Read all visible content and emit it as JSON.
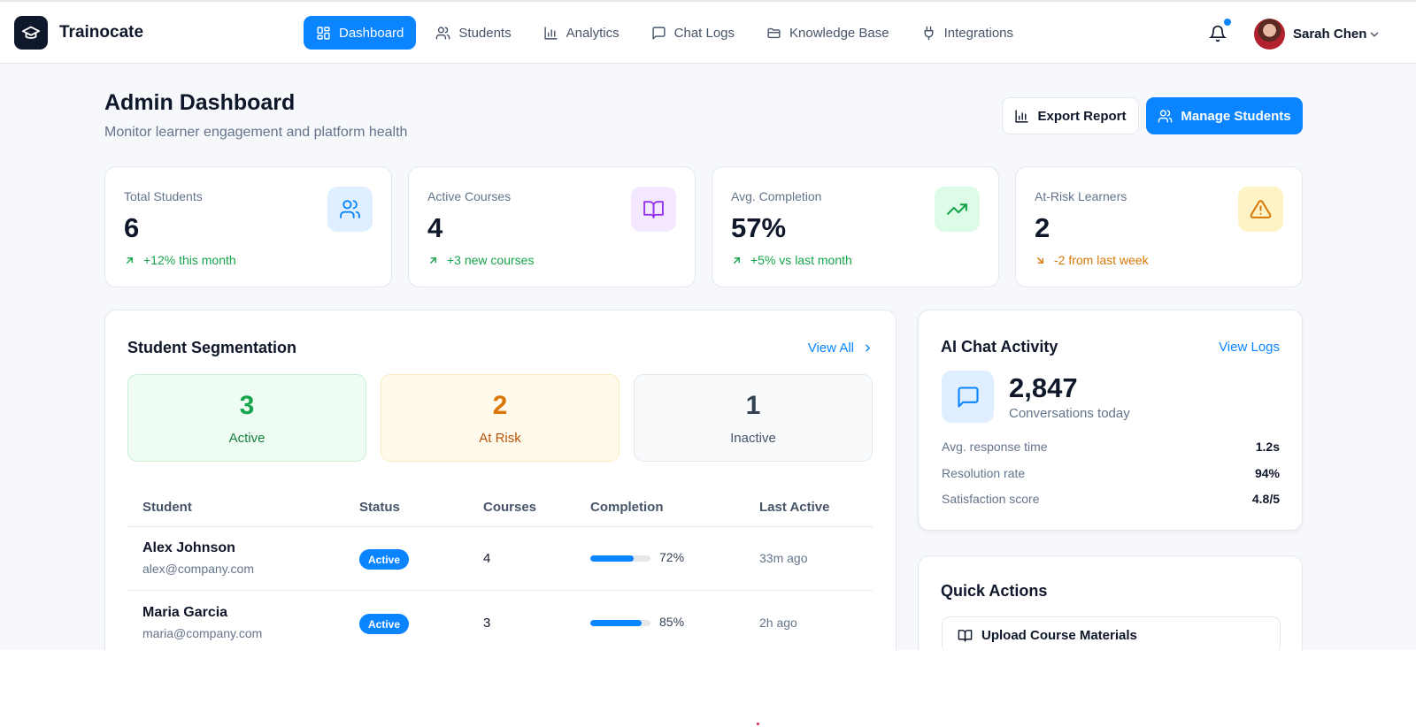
{
  "app": {
    "name": "Trainocate",
    "colors": {
      "accent": "#0a84ff",
      "success": "#16a34a",
      "warning": "#d97706",
      "dark": "#0f172a"
    }
  },
  "nav": [
    {
      "label": "Dashboard",
      "icon": "grid-icon",
      "active": true
    },
    {
      "label": "Students",
      "icon": "users-icon",
      "active": false
    },
    {
      "label": "Analytics",
      "icon": "bar-chart-icon",
      "active": false
    },
    {
      "label": "Chat Logs",
      "icon": "message-square-icon",
      "active": false
    },
    {
      "label": "Knowledge Base",
      "icon": "folder-icon",
      "active": false
    },
    {
      "label": "Integrations",
      "icon": "plug-icon",
      "active": false
    }
  ],
  "user": {
    "name": "Sarah Chen",
    "has_notifications": true
  },
  "page": {
    "title": "Admin Dashboard",
    "subtitle": "Monitor learner engagement and platform health",
    "export_label": "Export Report",
    "manage_label": "Manage Students"
  },
  "stats": [
    {
      "label": "Total Students",
      "value": "6",
      "trend": "+12% this month",
      "trend_dir": "up",
      "icon": "users-icon"
    },
    {
      "label": "Active Courses",
      "value": "4",
      "trend": "+3 new courses",
      "trend_dir": "up",
      "icon": "book-open-icon"
    },
    {
      "label": "Avg. Completion",
      "value": "57%",
      "trend": "+5% vs last month",
      "trend_dir": "up",
      "icon": "trending-up-icon"
    },
    {
      "label": "At-Risk Learners",
      "value": "2",
      "trend": "-2 from last week",
      "trend_dir": "down",
      "icon": "alert-triangle-icon"
    }
  ],
  "segmentation": {
    "title": "Student Segmentation",
    "view_all": "View All",
    "segments": [
      {
        "count": "3",
        "label": "Active"
      },
      {
        "count": "2",
        "label": "At Risk"
      },
      {
        "count": "1",
        "label": "Inactive"
      }
    ],
    "columns": [
      "Student",
      "Status",
      "Courses",
      "Completion",
      "Last Active"
    ],
    "rows": [
      {
        "name": "Alex Johnson",
        "email": "alex@company.com",
        "status": "Active",
        "courses": "4",
        "completion": 72,
        "completion_label": "72%",
        "last_active": "33m ago"
      },
      {
        "name": "Maria Garcia",
        "email": "maria@company.com",
        "status": "Active",
        "courses": "3",
        "completion": 85,
        "completion_label": "85%",
        "last_active": "2h ago"
      }
    ]
  },
  "ai_chat": {
    "title": "AI Chat Activity",
    "view_logs": "View Logs",
    "count": "2,847",
    "count_label": "Conversations today",
    "metrics": [
      {
        "label": "Avg. response time",
        "value": "1.2s"
      },
      {
        "label": "Resolution rate",
        "value": "94%"
      },
      {
        "label": "Satisfaction score",
        "value": "4.8/5"
      }
    ]
  },
  "quick_actions": {
    "title": "Quick Actions",
    "items": [
      {
        "label": "Upload Course Materials",
        "icon": "book-open-icon"
      }
    ]
  }
}
